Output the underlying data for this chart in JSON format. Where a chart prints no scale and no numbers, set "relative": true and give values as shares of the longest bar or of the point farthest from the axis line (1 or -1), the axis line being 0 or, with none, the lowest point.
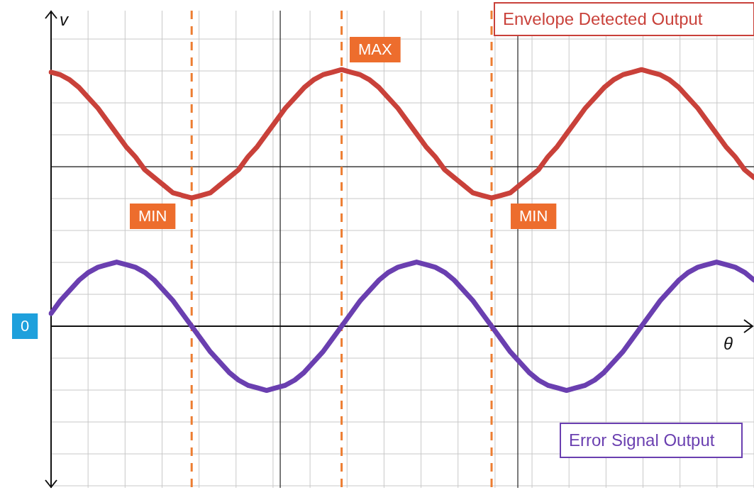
{
  "chart_data": {
    "type": "line",
    "relative": true,
    "xlabel": "θ",
    "ylabel": "v",
    "grid": true,
    "legend": false,
    "line_style": "solid",
    "categories": [
      null,
      null,
      null,
      null,
      null,
      null,
      null,
      null,
      null,
      null,
      null,
      null,
      null,
      null,
      null,
      null,
      null,
      null,
      null,
      null,
      null,
      null,
      null,
      null,
      null,
      null,
      null,
      null,
      null,
      null,
      null,
      null,
      null,
      null,
      null,
      null,
      null,
      null,
      null,
      null,
      null,
      null,
      null,
      null,
      null,
      null,
      null,
      null,
      null,
      null,
      null,
      null,
      null,
      null,
      null,
      null,
      null,
      null,
      null,
      null,
      null,
      null,
      null,
      null,
      null,
      null,
      null,
      null,
      null,
      null,
      null,
      null,
      null,
      null,
      null,
      null
    ],
    "series": [
      {
        "name": "Envelope Detected Output",
        "color": "#c9413a",
        "values": [
          0.99,
          0.98,
          0.96,
          0.93,
          0.89,
          0.85,
          0.8,
          0.75,
          0.7,
          0.66,
          0.61,
          0.58,
          0.55,
          0.52,
          0.51,
          0.5,
          0.51,
          0.52,
          0.55,
          0.58,
          0.61,
          0.66,
          0.7,
          0.75,
          0.8,
          0.85,
          0.89,
          0.93,
          0.96,
          0.98,
          0.99,
          1.0,
          0.99,
          0.98,
          0.96,
          0.93,
          0.89,
          0.85,
          0.8,
          0.75,
          0.7,
          0.66,
          0.61,
          0.58,
          0.55,
          0.52,
          0.51,
          0.5,
          0.51,
          0.52,
          0.55,
          0.58,
          0.61,
          0.66,
          0.7,
          0.75,
          0.8,
          0.85,
          0.89,
          0.93,
          0.96,
          0.98,
          0.99,
          1.0,
          0.99,
          0.98,
          0.96,
          0.93,
          0.89,
          0.85,
          0.8,
          0.75,
          0.7,
          0.66,
          0.61,
          0.58
        ]
      },
      {
        "name": "Error Signal Output",
        "color": "#6a3fb0",
        "values": [
          0.05,
          0.1,
          0.14,
          0.18,
          0.21,
          0.23,
          0.24,
          0.25,
          0.24,
          0.23,
          0.21,
          0.18,
          0.14,
          0.1,
          0.05,
          0,
          -0.05,
          -0.1,
          -0.14,
          -0.18,
          -0.21,
          -0.23,
          -0.24,
          -0.25,
          -0.24,
          -0.23,
          -0.21,
          -0.18,
          -0.14,
          -0.1,
          -0.05,
          0,
          0.05,
          0.1,
          0.14,
          0.18,
          0.21,
          0.23,
          0.24,
          0.25,
          0.24,
          0.23,
          0.21,
          0.18,
          0.14,
          0.1,
          0.05,
          0,
          -0.05,
          -0.1,
          -0.14,
          -0.18,
          -0.21,
          -0.23,
          -0.24,
          -0.25,
          -0.24,
          -0.23,
          -0.21,
          -0.18,
          -0.14,
          -0.1,
          -0.05,
          0,
          0.05,
          0.1,
          0.14,
          0.18,
          0.21,
          0.23,
          0.24,
          0.25,
          0.24,
          0.23,
          0.21,
          0.18
        ]
      }
    ],
    "annotations": [
      "MIN",
      "MAX",
      "MIN",
      "0"
    ]
  }
}
